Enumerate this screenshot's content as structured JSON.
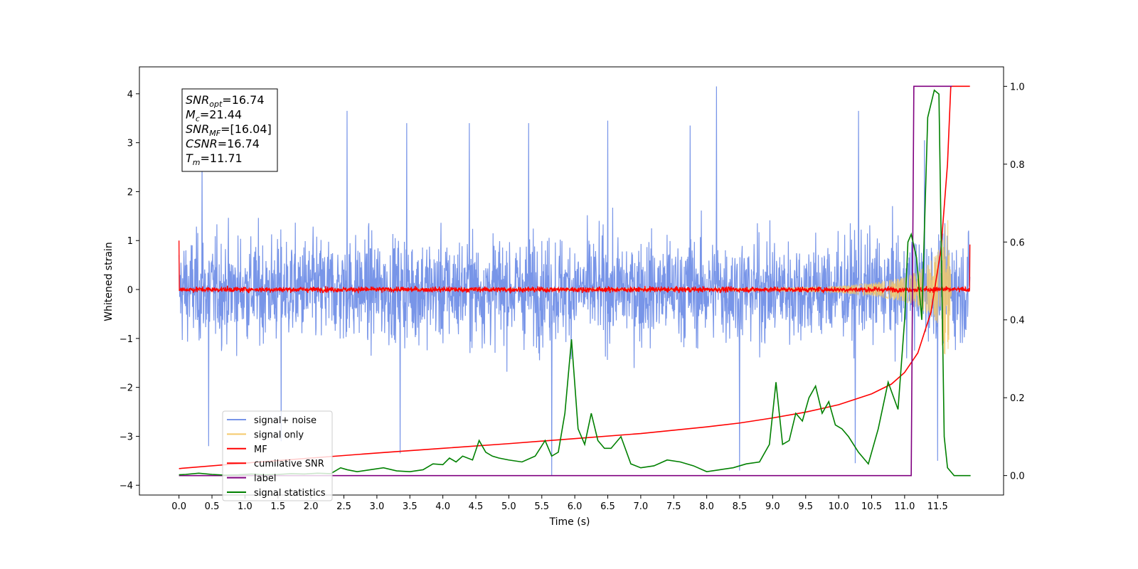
{
  "chart_data": {
    "type": "line",
    "xlabel": "Time (s)",
    "ylabel": "Whitened strain",
    "y2label": "",
    "xlim": [
      -0.6,
      12.5
    ],
    "ylim": [
      -4.2,
      4.55
    ],
    "y2lim": [
      -0.05,
      1.05
    ],
    "x_ticks": [
      "0.0",
      "0.5",
      "1.0",
      "1.5",
      "2.0",
      "2.5",
      "3.0",
      "3.5",
      "4.0",
      "4.5",
      "5.0",
      "5.5",
      "6.0",
      "6.5",
      "7.0",
      "7.5",
      "8.0",
      "8.5",
      "9.0",
      "9.5",
      "10.0",
      "10.5",
      "11.0",
      "11.5"
    ],
    "y_ticks": [
      -4,
      -3,
      -2,
      -1,
      0,
      1,
      2,
      3,
      4
    ],
    "y_tick_labels": [
      "−4",
      "−3",
      "−2",
      "−1",
      "0",
      "1",
      "2",
      "3",
      "4"
    ],
    "y2_ticks": [
      "0.0",
      "0.2",
      "0.4",
      "0.6",
      "0.8",
      "1.0"
    ],
    "legend_position": "lower-left",
    "legend": [
      {
        "label": "signal+ noise",
        "color": "#7895e8"
      },
      {
        "label": "signal only",
        "color": "#f5c96a"
      },
      {
        "label": "MF",
        "color": "#ff0000"
      },
      {
        "label": "cumilative SNR",
        "color": "#ff0000"
      },
      {
        "label": "label",
        "color": "#800080"
      },
      {
        "label": "signal statistics",
        "color": "#008000"
      }
    ],
    "annotation_box": {
      "lines": [
        {
          "main": "SNR",
          "sub": "opt",
          "rest": "=16.74"
        },
        {
          "main": "M",
          "sub": "c",
          "rest": "=21.44"
        },
        {
          "main": "SNR",
          "sub": "MF",
          "rest": "=[16.04]"
        },
        {
          "main": "CSNR",
          "sub": "",
          "rest": "=16.74"
        },
        {
          "main": "T",
          "sub": "m",
          "rest": "=11.71"
        }
      ]
    },
    "series": [
      {
        "name": "signal+ noise",
        "axis": "left",
        "color": "#7895e8",
        "description_range": [
          -3.7,
          4.15
        ],
        "peaks_x": [
          0.35,
          2.55,
          3.45,
          4.4,
          5.3,
          6.5,
          7.75,
          8.15,
          10.3,
          11.3
        ],
        "peaks_y": [
          2.7,
          3.65,
          3.4,
          3.4,
          3.4,
          3.45,
          3.35,
          4.15,
          3.65,
          3.05
        ],
        "troughs_x": [
          0.45,
          1.55,
          3.35,
          5.65,
          8.5,
          10.25,
          11.5
        ],
        "troughs_y": [
          -3.2,
          -3.1,
          -3.35,
          -3.8,
          -3.7,
          -3.55,
          -3.5
        ]
      },
      {
        "name": "signal only",
        "axis": "left",
        "color": "#f5c96a",
        "envelope_x": [
          0.0,
          9.0,
          10.0,
          10.5,
          11.0,
          11.3,
          11.5,
          11.65,
          11.71
        ],
        "envelope_y": [
          0.01,
          0.03,
          0.07,
          0.13,
          0.25,
          0.45,
          0.75,
          1.6,
          0.0
        ]
      },
      {
        "name": "MF",
        "axis": "left",
        "color": "#ff0000",
        "start_value": 1.0,
        "noise_amplitude": 0.09,
        "end_value": 0.92
      },
      {
        "name": "cumilative SNR",
        "axis": "right",
        "color": "#ff0000",
        "x": [
          0.0,
          1.0,
          2.0,
          3.0,
          4.0,
          5.0,
          6.0,
          7.0,
          8.0,
          8.5,
          9.0,
          9.5,
          10.0,
          10.5,
          10.8,
          11.0,
          11.2,
          11.4,
          11.55,
          11.65,
          11.7,
          11.72,
          11.9,
          11.99
        ],
        "y": [
          0.018,
          0.032,
          0.045,
          0.058,
          0.07,
          0.082,
          0.095,
          0.108,
          0.125,
          0.135,
          0.148,
          0.163,
          0.182,
          0.21,
          0.235,
          0.265,
          0.315,
          0.42,
          0.58,
          0.8,
          1.0,
          1.0,
          1.0,
          1.0
        ]
      },
      {
        "name": "label",
        "axis": "right",
        "color": "#800080",
        "x": [
          0.0,
          11.1,
          11.1,
          11.14,
          11.72
        ],
        "y": [
          0.0,
          0.0,
          0.0,
          1.0,
          1.0
        ]
      },
      {
        "name": "signal statistics",
        "axis": "right",
        "color": "#008000",
        "x": [
          0.0,
          0.1,
          0.3,
          0.5,
          0.7,
          0.9,
          1.1,
          1.3,
          1.5,
          1.7,
          1.9,
          2.1,
          2.3,
          2.45,
          2.55,
          2.7,
          2.9,
          3.1,
          3.3,
          3.5,
          3.7,
          3.85,
          4.0,
          4.1,
          4.2,
          4.3,
          4.45,
          4.55,
          4.65,
          4.75,
          4.85,
          5.0,
          5.2,
          5.4,
          5.55,
          5.65,
          5.75,
          5.85,
          5.95,
          6.05,
          6.15,
          6.25,
          6.35,
          6.45,
          6.55,
          6.7,
          6.85,
          7.0,
          7.2,
          7.4,
          7.6,
          7.8,
          8.0,
          8.2,
          8.4,
          8.6,
          8.8,
          8.95,
          9.05,
          9.15,
          9.25,
          9.35,
          9.45,
          9.55,
          9.65,
          9.75,
          9.85,
          9.95,
          10.05,
          10.15,
          10.3,
          10.45,
          10.6,
          10.75,
          10.9,
          11.0,
          11.05,
          11.1,
          11.18,
          11.26,
          11.35,
          11.45,
          11.52,
          11.6,
          11.65,
          11.7,
          11.75,
          11.8,
          11.9,
          12.0
        ],
        "y": [
          0.002,
          0.003,
          0.006,
          0.003,
          0.001,
          0.002,
          0.004,
          0.002,
          0.003,
          0.005,
          0.004,
          0.006,
          0.005,
          0.02,
          0.015,
          0.01,
          0.015,
          0.02,
          0.012,
          0.01,
          0.015,
          0.03,
          0.028,
          0.045,
          0.035,
          0.05,
          0.04,
          0.09,
          0.06,
          0.05,
          0.045,
          0.04,
          0.035,
          0.05,
          0.09,
          0.05,
          0.06,
          0.16,
          0.35,
          0.12,
          0.08,
          0.16,
          0.09,
          0.07,
          0.07,
          0.1,
          0.03,
          0.02,
          0.025,
          0.04,
          0.035,
          0.025,
          0.01,
          0.015,
          0.02,
          0.03,
          0.035,
          0.08,
          0.24,
          0.08,
          0.09,
          0.16,
          0.14,
          0.2,
          0.23,
          0.16,
          0.19,
          0.13,
          0.12,
          0.1,
          0.06,
          0.03,
          0.12,
          0.24,
          0.17,
          0.4,
          0.6,
          0.62,
          0.56,
          0.4,
          0.92,
          0.99,
          0.98,
          0.1,
          0.02,
          0.01,
          0.0,
          0.0,
          0.0,
          0.0
        ]
      }
    ]
  }
}
